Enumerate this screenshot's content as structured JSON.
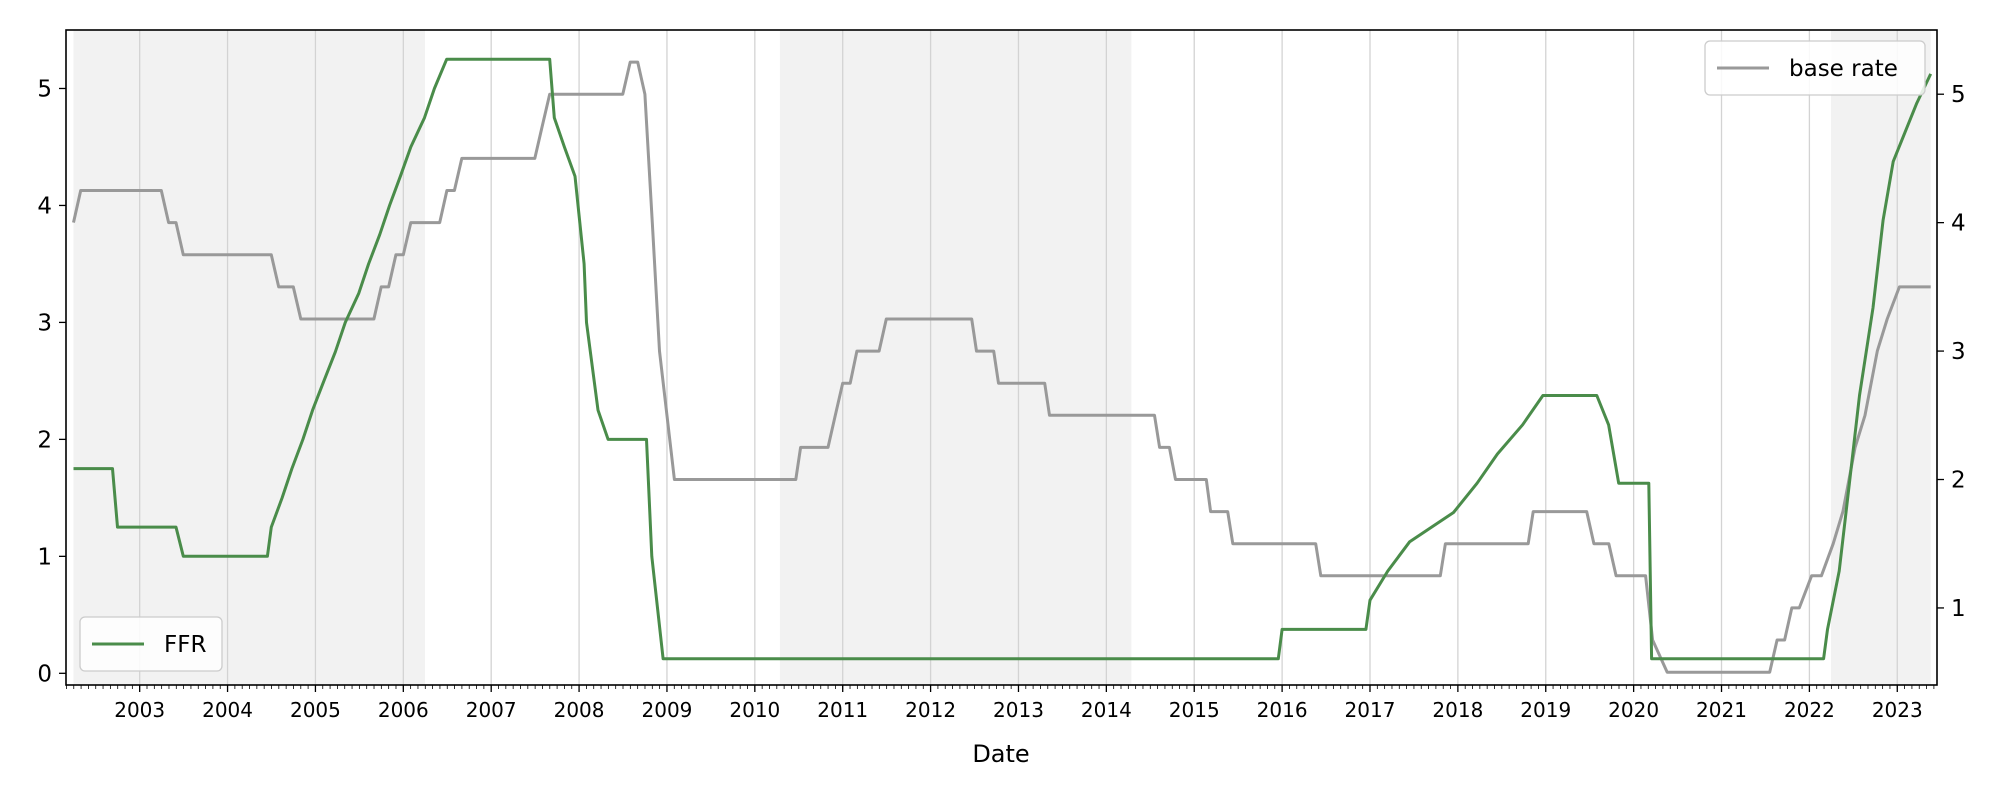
{
  "chart_data": {
    "type": "line",
    "xlabel": "Date",
    "x_ticks": [
      "2003",
      "2004",
      "2005",
      "2006",
      "2007",
      "2008",
      "2009",
      "2010",
      "2011",
      "2012",
      "2013",
      "2014",
      "2015",
      "2016",
      "2017",
      "2018",
      "2019",
      "2020",
      "2021",
      "2022",
      "2023"
    ],
    "xlim": [
      "2002-03-01",
      "2023-06-15"
    ],
    "y_left": {
      "ylim": [
        -0.1,
        5.5
      ],
      "ticks": [
        "0",
        "1",
        "2",
        "3",
        "4",
        "5"
      ]
    },
    "y_right": {
      "ylim": [
        0.4,
        5.5
      ],
      "ticks": [
        "1",
        "2",
        "3",
        "4",
        "5"
      ]
    },
    "grid": {
      "vertical": true,
      "horizontal": false
    },
    "shaded_periods": [
      [
        "2002-04-01",
        "2006-04-01"
      ],
      [
        "2010-04-15",
        "2014-04-15"
      ],
      [
        "2022-04-01",
        "2023-05-20"
      ]
    ],
    "series": [
      {
        "name": "FFR",
        "axis": "left",
        "color": "#4a8c4a",
        "legend_position": "lower-left",
        "points": [
          [
            "2002-04-01",
            1.75
          ],
          [
            "2002-09-10",
            1.75
          ],
          [
            "2002-10-01",
            1.25
          ],
          [
            "2003-06-01",
            1.25
          ],
          [
            "2003-07-01",
            1.0
          ],
          [
            "2004-06-15",
            1.0
          ],
          [
            "2004-07-01",
            1.25
          ],
          [
            "2004-08-15",
            1.5
          ],
          [
            "2004-09-25",
            1.75
          ],
          [
            "2004-11-10",
            2.0
          ],
          [
            "2004-12-20",
            2.25
          ],
          [
            "2005-02-05",
            2.5
          ],
          [
            "2005-03-25",
            2.75
          ],
          [
            "2005-05-05",
            3.0
          ],
          [
            "2005-06-30",
            3.25
          ],
          [
            "2005-08-10",
            3.5
          ],
          [
            "2005-09-25",
            3.75
          ],
          [
            "2005-11-05",
            4.0
          ],
          [
            "2005-12-20",
            4.25
          ],
          [
            "2006-02-01",
            4.5
          ],
          [
            "2006-03-30",
            4.75
          ],
          [
            "2006-05-10",
            5.0
          ],
          [
            "2006-06-30",
            5.25
          ],
          [
            "2007-09-01",
            5.25
          ],
          [
            "2007-09-20",
            4.75
          ],
          [
            "2007-11-01",
            4.5
          ],
          [
            "2007-12-15",
            4.25
          ],
          [
            "2008-01-22",
            3.5
          ],
          [
            "2008-02-01",
            3.0
          ],
          [
            "2008-03-20",
            2.25
          ],
          [
            "2008-05-01",
            2.0
          ],
          [
            "2008-10-08",
            2.0
          ],
          [
            "2008-10-30",
            1.0
          ],
          [
            "2008-12-16",
            0.125
          ],
          [
            "2015-12-16",
            0.125
          ],
          [
            "2016-01-01",
            0.375
          ],
          [
            "2016-12-15",
            0.375
          ],
          [
            "2017-01-01",
            0.625
          ],
          [
            "2017-03-16",
            0.875
          ],
          [
            "2017-06-15",
            1.125
          ],
          [
            "2017-12-14",
            1.375
          ],
          [
            "2018-03-22",
            1.625
          ],
          [
            "2018-06-14",
            1.875
          ],
          [
            "2018-09-27",
            2.125
          ],
          [
            "2018-12-20",
            2.375
          ],
          [
            "2019-08-01",
            2.375
          ],
          [
            "2019-09-19",
            2.125
          ],
          [
            "2019-10-31",
            1.625
          ],
          [
            "2020-03-04",
            1.625
          ],
          [
            "2020-03-16",
            0.125
          ],
          [
            "2022-03-01",
            0.125
          ],
          [
            "2022-03-17",
            0.375
          ],
          [
            "2022-05-05",
            0.875
          ],
          [
            "2022-06-16",
            1.625
          ],
          [
            "2022-07-28",
            2.375
          ],
          [
            "2022-09-22",
            3.125
          ],
          [
            "2022-11-03",
            3.875
          ],
          [
            "2022-12-15",
            4.375
          ],
          [
            "2023-02-02",
            4.625
          ],
          [
            "2023-03-23",
            4.875
          ],
          [
            "2023-05-20",
            5.125
          ]
        ]
      },
      {
        "name": "base rate",
        "axis": "right",
        "color": "#999999",
        "legend_position": "upper-right",
        "points": [
          [
            "2002-04-01",
            4.0
          ],
          [
            "2002-05-01",
            4.25
          ],
          [
            "2003-04-01",
            4.25
          ],
          [
            "2003-05-01",
            4.0
          ],
          [
            "2003-06-01",
            4.0
          ],
          [
            "2003-07-01",
            3.75
          ],
          [
            "2004-07-01",
            3.75
          ],
          [
            "2004-08-01",
            3.5
          ],
          [
            "2004-10-01",
            3.5
          ],
          [
            "2004-11-01",
            3.25
          ],
          [
            "2005-09-01",
            3.25
          ],
          [
            "2005-10-01",
            3.5
          ],
          [
            "2005-11-01",
            3.5
          ],
          [
            "2005-12-01",
            3.75
          ],
          [
            "2006-01-01",
            3.75
          ],
          [
            "2006-02-01",
            4.0
          ],
          [
            "2006-06-01",
            4.0
          ],
          [
            "2006-07-01",
            4.25
          ],
          [
            "2006-08-01",
            4.25
          ],
          [
            "2006-09-01",
            4.5
          ],
          [
            "2007-07-01",
            4.5
          ],
          [
            "2007-08-01",
            4.75
          ],
          [
            "2007-09-01",
            5.0
          ],
          [
            "2008-07-01",
            5.0
          ],
          [
            "2008-08-01",
            5.25
          ],
          [
            "2008-09-01",
            5.25
          ],
          [
            "2008-10-01",
            5.0
          ],
          [
            "2008-11-01",
            4.0
          ],
          [
            "2008-12-01",
            3.0
          ],
          [
            "2009-02-01",
            2.0
          ],
          [
            "2010-06-20",
            2.0
          ],
          [
            "2010-07-10",
            2.25
          ],
          [
            "2010-11-01",
            2.25
          ],
          [
            "2010-12-01",
            2.5
          ],
          [
            "2011-01-01",
            2.75
          ],
          [
            "2011-02-01",
            2.75
          ],
          [
            "2011-03-01",
            3.0
          ],
          [
            "2011-06-01",
            3.0
          ],
          [
            "2011-07-01",
            3.25
          ],
          [
            "2012-06-20",
            3.25
          ],
          [
            "2012-07-10",
            3.0
          ],
          [
            "2012-09-20",
            3.0
          ],
          [
            "2012-10-10",
            2.75
          ],
          [
            "2013-04-20",
            2.75
          ],
          [
            "2013-05-10",
            2.5
          ],
          [
            "2014-07-20",
            2.5
          ],
          [
            "2014-08-10",
            2.25
          ],
          [
            "2014-09-20",
            2.25
          ],
          [
            "2014-10-15",
            2.0
          ],
          [
            "2015-02-20",
            2.0
          ],
          [
            "2015-03-10",
            1.75
          ],
          [
            "2015-05-20",
            1.75
          ],
          [
            "2015-06-10",
            1.5
          ],
          [
            "2016-05-20",
            1.5
          ],
          [
            "2016-06-10",
            1.25
          ],
          [
            "2017-10-20",
            1.25
          ],
          [
            "2017-11-10",
            1.5
          ],
          [
            "2018-10-20",
            1.5
          ],
          [
            "2018-11-10",
            1.75
          ],
          [
            "2019-06-20",
            1.75
          ],
          [
            "2019-07-20",
            1.5
          ],
          [
            "2019-09-20",
            1.5
          ],
          [
            "2019-10-20",
            1.25
          ],
          [
            "2020-02-20",
            1.25
          ],
          [
            "2020-03-20",
            0.75
          ],
          [
            "2020-05-20",
            0.5
          ],
          [
            "2021-07-20",
            0.5
          ],
          [
            "2021-08-20",
            0.75
          ],
          [
            "2021-09-20",
            0.75
          ],
          [
            "2021-10-20",
            1.0
          ],
          [
            "2021-11-20",
            1.0
          ],
          [
            "2022-01-10",
            1.25
          ],
          [
            "2022-02-20",
            1.25
          ],
          [
            "2022-04-10",
            1.5
          ],
          [
            "2022-05-20",
            1.75
          ],
          [
            "2022-07-10",
            2.25
          ],
          [
            "2022-08-20",
            2.5
          ],
          [
            "2022-10-10",
            3.0
          ],
          [
            "2022-11-20",
            3.25
          ],
          [
            "2023-01-10",
            3.5
          ],
          [
            "2023-05-20",
            3.5
          ]
        ]
      }
    ]
  }
}
